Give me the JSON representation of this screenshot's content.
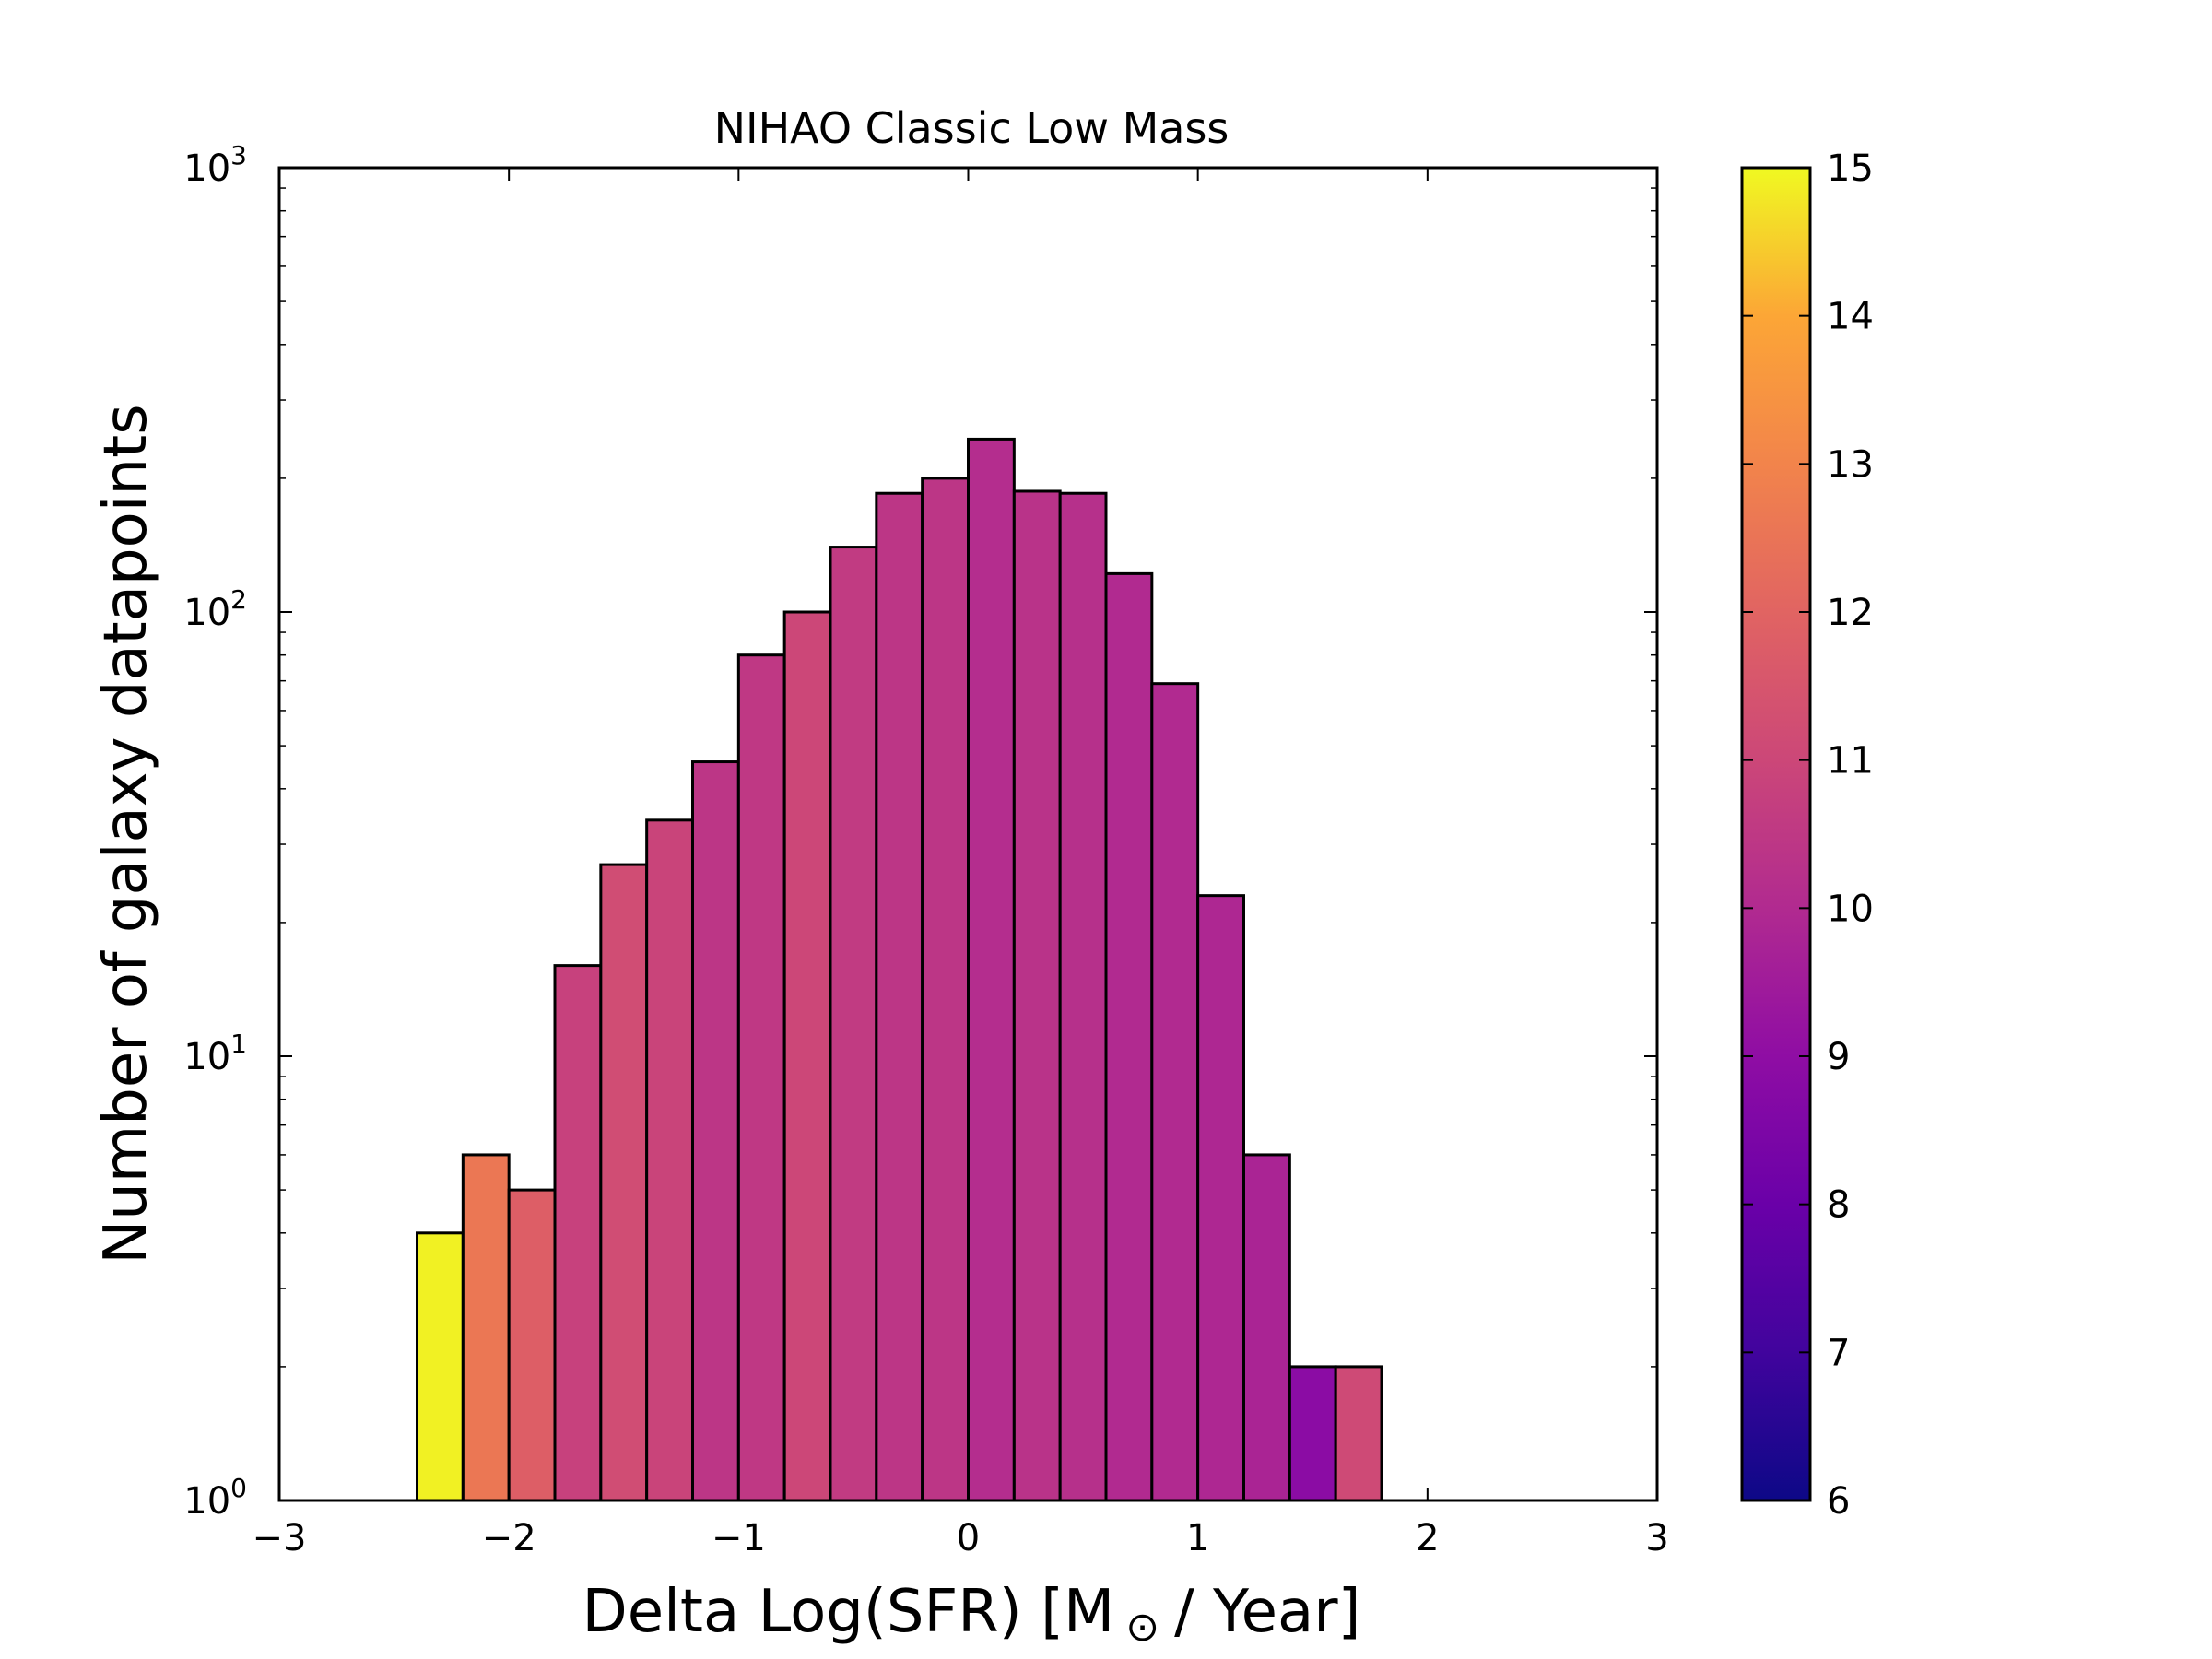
{
  "chart_data": {
    "type": "bar",
    "title": "NIHAO Classic Low Mass",
    "xlabel": "Delta Log(SFR) [M",
    "xlabel_symbol": "⊙",
    "xlabel_suffix": "/ Year]",
    "ylabel": "Number of galaxy datapoints",
    "xlim": [
      -3,
      3
    ],
    "ylim": [
      1,
      1000
    ],
    "yscale": "log",
    "grid": false,
    "colormap": "plasma",
    "x_ticks": [
      {
        "value": -3,
        "label": "−3"
      },
      {
        "value": -2,
        "label": "−2"
      },
      {
        "value": -1,
        "label": "−1"
      },
      {
        "value": 0,
        "label": "0"
      },
      {
        "value": 1,
        "label": "1"
      },
      {
        "value": 2,
        "label": "2"
      },
      {
        "value": 3,
        "label": "3"
      }
    ],
    "y_ticks": [
      {
        "value": 1,
        "base": "10",
        "exp": "0"
      },
      {
        "value": 10,
        "base": "10",
        "exp": "1"
      },
      {
        "value": 100,
        "base": "10",
        "exp": "2"
      },
      {
        "value": 1000,
        "base": "10",
        "exp": "3"
      }
    ],
    "bins": [
      {
        "left": -2.4,
        "right": -2.2,
        "count": 4,
        "color_value": 14.9
      },
      {
        "left": -2.2,
        "right": -2.0,
        "count": 6,
        "color_value": 12.6
      },
      {
        "left": -2.0,
        "right": -1.8,
        "count": 5,
        "color_value": 11.8
      },
      {
        "left": -1.8,
        "right": -1.6,
        "count": 16,
        "color_value": 10.8
      },
      {
        "left": -1.6,
        "right": -1.4,
        "count": 27,
        "color_value": 11.2
      },
      {
        "left": -1.4,
        "right": -1.2,
        "count": 34,
        "color_value": 10.9
      },
      {
        "left": -1.2,
        "right": -1.0,
        "count": 46,
        "color_value": 10.4
      },
      {
        "left": -1.0,
        "right": -0.8,
        "count": 80,
        "color_value": 10.5
      },
      {
        "left": -0.8,
        "right": -0.6,
        "count": 100,
        "color_value": 11.0
      },
      {
        "left": -0.6,
        "right": -0.4,
        "count": 140,
        "color_value": 10.6
      },
      {
        "left": -0.4,
        "right": -0.2,
        "count": 185,
        "color_value": 10.4
      },
      {
        "left": -0.2,
        "right": 0.0,
        "count": 200,
        "color_value": 10.4
      },
      {
        "left": 0.0,
        "right": 0.2,
        "count": 245,
        "color_value": 10.1
      },
      {
        "left": 0.2,
        "right": 0.4,
        "count": 187,
        "color_value": 10.3
      },
      {
        "left": 0.4,
        "right": 0.6,
        "count": 185,
        "color_value": 10.2
      },
      {
        "left": 0.6,
        "right": 0.8,
        "count": 122,
        "color_value": 10.0
      },
      {
        "left": 0.8,
        "right": 1.0,
        "count": 69,
        "color_value": 10.0
      },
      {
        "left": 1.0,
        "right": 1.2,
        "count": 23,
        "color_value": 9.9
      },
      {
        "left": 1.2,
        "right": 1.4,
        "count": 6,
        "color_value": 9.8
      },
      {
        "left": 1.4,
        "right": 1.6,
        "count": 2,
        "color_value": 8.9
      },
      {
        "left": 1.6,
        "right": 1.8,
        "count": 2,
        "color_value": 11.1
      }
    ],
    "colorbar": {
      "min": 6,
      "max": 15,
      "ticks": [
        "6",
        "7",
        "8",
        "9",
        "10",
        "11",
        "12",
        "13",
        "14",
        "15"
      ]
    }
  }
}
